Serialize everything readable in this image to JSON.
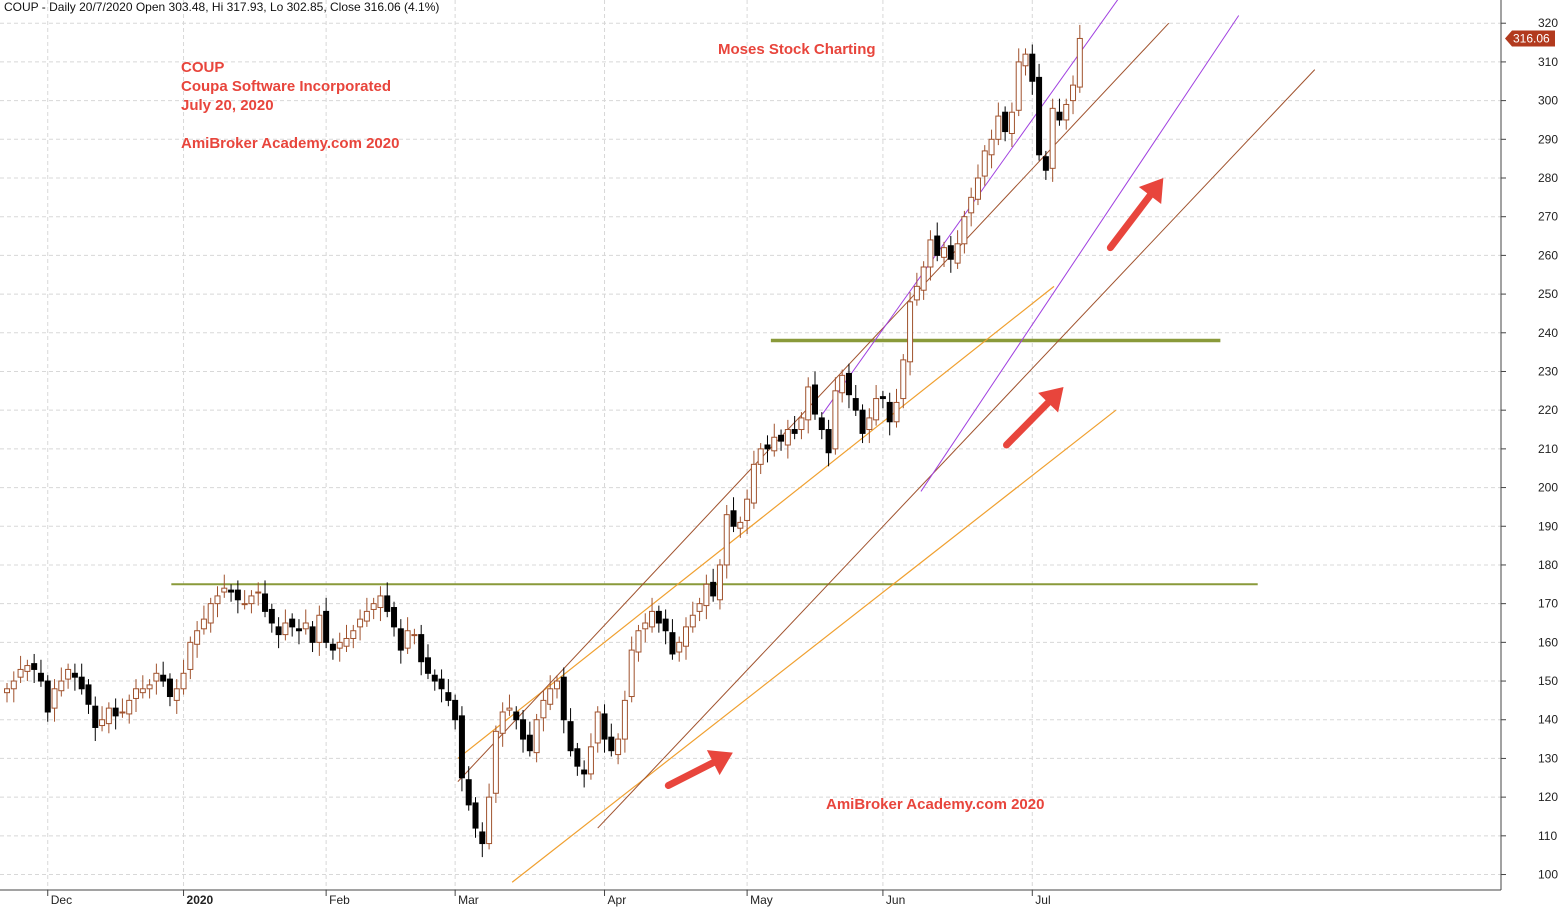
{
  "header": {
    "text": "COUP - Daily 20/7/2020 Open 303.48, Hi 317.93, Lo 302.85, Close 316.06 (4.1%)"
  },
  "annotations": {
    "symbol": "COUP",
    "company": "Coupa Software Incorporated",
    "date": "July 20, 2020",
    "watermark_top": "AmiBroker Academy.com  2020",
    "title": "Moses Stock Charting",
    "watermark_bottom": "AmiBroker Academy.com  2020"
  },
  "colors": {
    "up_candle": "#a0522d",
    "down_candle": "#000000",
    "grid": "#d8d8d8",
    "annotation_red": "#e8453c",
    "price_tag": "#b23a1e",
    "support_line": "#8a9a3a",
    "channel_brown": "#a0522d",
    "channel_orange": "#f0a030",
    "channel_purple": "#a040e0"
  },
  "chart_data": {
    "type": "candlestick",
    "title": "COUP - Daily 20/7/2020",
    "ylim": [
      96,
      326
    ],
    "y_ticks": [
      100,
      110,
      120,
      130,
      140,
      150,
      160,
      170,
      180,
      190,
      200,
      210,
      220,
      230,
      240,
      250,
      260,
      270,
      280,
      290,
      300,
      310,
      320
    ],
    "x_tick_labels": [
      {
        "label": "Dec",
        "index": 6
      },
      {
        "label": "2020",
        "index": 26,
        "bold": true
      },
      {
        "label": "Feb",
        "index": 47
      },
      {
        "label": "Mar",
        "index": 66
      },
      {
        "label": "Apr",
        "index": 88
      },
      {
        "label": "May",
        "index": 109
      },
      {
        "label": "Jun",
        "index": 129
      },
      {
        "label": "Jul",
        "index": 151
      }
    ],
    "last_price_label": "316.06",
    "grid": true,
    "closes": [
      148,
      150,
      153,
      154,
      153,
      150,
      142,
      148,
      150,
      153,
      151,
      148,
      144,
      138,
      140,
      143,
      141,
      142,
      145,
      148,
      148,
      149,
      152,
      150,
      146,
      148,
      152,
      160,
      163,
      166,
      170,
      172,
      174,
      173,
      171,
      170,
      172,
      173,
      168,
      165,
      162,
      165,
      164,
      163,
      165,
      160,
      167,
      160,
      158,
      160,
      161,
      163,
      166,
      168,
      170,
      172,
      168,
      164,
      158,
      163,
      162,
      155,
      152,
      150,
      148,
      145,
      140,
      125,
      118,
      112,
      108,
      120,
      137,
      142,
      143,
      140,
      135,
      132,
      140,
      145,
      148,
      150,
      140,
      132,
      128,
      126,
      133,
      142,
      135,
      132,
      135,
      145,
      158,
      163,
      165,
      168,
      165,
      163,
      157,
      160,
      164,
      167,
      170,
      175,
      172,
      180,
      193,
      190,
      191,
      197,
      206,
      210,
      210,
      213,
      212,
      215,
      214,
      218,
      226,
      219,
      215,
      209,
      225,
      229,
      224,
      220,
      214,
      218,
      223,
      223,
      217,
      222,
      233,
      248,
      252,
      257,
      264,
      260,
      262,
      259,
      263,
      270,
      275,
      280,
      287,
      290,
      296,
      292,
      297,
      310,
      312,
      305,
      286,
      282,
      298,
      295,
      299,
      304,
      316.06
    ]
  }
}
